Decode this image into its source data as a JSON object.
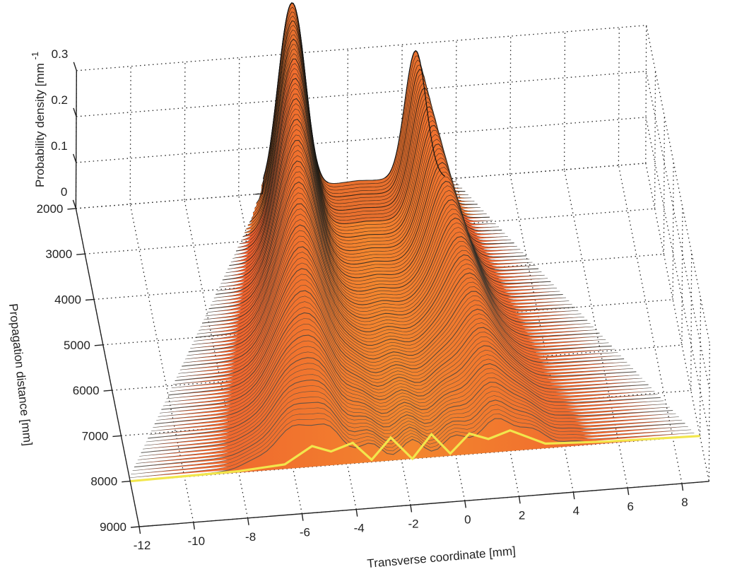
{
  "chart_data": {
    "type": "surface",
    "xlabel": "Transverse coordinate [mm]",
    "ylabel": "Propagation distance [mm]",
    "zlabel": "Probability density [mm",
    "zlabel_superscript": "-1",
    "x_ticks": [
      "-12",
      "-10",
      "-8",
      "-6",
      "-4",
      "-2",
      "0",
      "2",
      "4",
      "6",
      "8"
    ],
    "y_ticks": [
      "2000",
      "3000",
      "4000",
      "5000",
      "6000",
      "7000",
      "8000",
      "9000"
    ],
    "z_ticks": [
      "0",
      "0.1",
      "0.2",
      "0.3"
    ],
    "xlim": [
      -12,
      9
    ],
    "ylim": [
      2000,
      9000
    ],
    "zlim": [
      0,
      0.3
    ],
    "grid": true,
    "colormap": [
      "#e8452a",
      "#f07a2a",
      "#f6c93a",
      "#f4f060",
      "#d0d070",
      "#7a7a6a",
      "#1a1a1a"
    ],
    "peaks": [
      {
        "x": -4.3,
        "y": 2000,
        "z": 0.26
      },
      {
        "x": -3.8,
        "y": 2000,
        "z": 0.24
      },
      {
        "x": 0.5,
        "y": 2000,
        "z": 0.28
      }
    ],
    "front_profile_y": 8000,
    "front_profile": [
      {
        "x": -12,
        "z": 0.0
      },
      {
        "x": -8,
        "z": 0.003
      },
      {
        "x": -6.3,
        "z": 0.01
      },
      {
        "x": -5.3,
        "z": 0.045
      },
      {
        "x": -4.6,
        "z": 0.03
      },
      {
        "x": -3.8,
        "z": 0.045
      },
      {
        "x": -3.1,
        "z": 0.005
      },
      {
        "x": -2.4,
        "z": 0.05
      },
      {
        "x": -1.6,
        "z": 0.0
      },
      {
        "x": -0.9,
        "z": 0.05
      },
      {
        "x": -0.2,
        "z": 0.005
      },
      {
        "x": 0.5,
        "z": 0.045
      },
      {
        "x": 1.2,
        "z": 0.03
      },
      {
        "x": 2.0,
        "z": 0.045
      },
      {
        "x": 3.3,
        "z": 0.01
      },
      {
        "x": 5.5,
        "z": 0.004
      },
      {
        "x": 9,
        "z": 0.0
      }
    ]
  }
}
